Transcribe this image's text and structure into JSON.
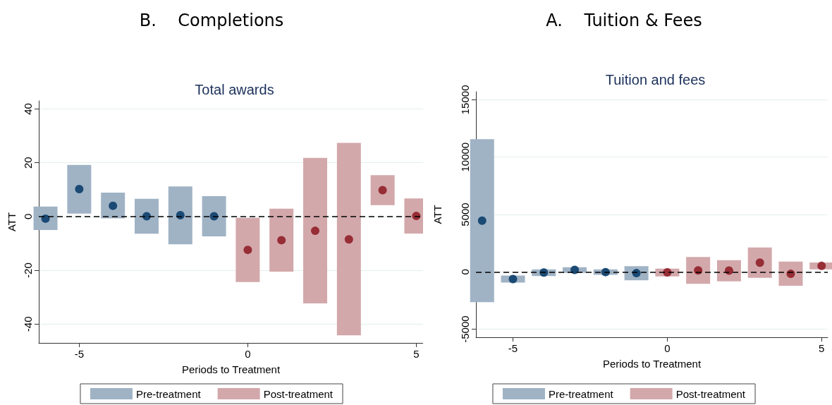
{
  "chart_data": [
    {
      "type": "bar",
      "title": "B.    Completions",
      "subtitle": "Total awards",
      "xlabel": "Periods to Treatment",
      "ylabel": "ATT",
      "xlim": [
        -6.2,
        5.2
      ],
      "xticks": [
        -5,
        0,
        5
      ],
      "ylim": [
        -47,
        43
      ],
      "yticks": [
        -40,
        -20,
        0,
        20,
        40
      ],
      "grid": "y",
      "legend": "bottom",
      "ref_lines": [
        {
          "axis": "y",
          "value": 0,
          "color": "#000000",
          "line_style": "dashed"
        }
      ],
      "series": [
        {
          "name": "Pre-treatment",
          "color": "#a0b3c5",
          "x": [
            -6,
            -5,
            -4,
            -3,
            -2,
            -1
          ],
          "base": [
            -5,
            1.1,
            -0.7,
            -6.4,
            -10.3,
            -7.4
          ],
          "values": [
            8.7,
            18.1,
            9.6,
            13,
            21.5,
            15
          ]
        },
        {
          "name": "Post-treatment",
          "color": "#d3a8ab",
          "x": [
            0,
            1,
            2,
            3,
            4,
            5
          ],
          "base": [
            -24.4,
            -20.5,
            -32.3,
            -44.2,
            4.2,
            -6.3
          ],
          "values": [
            23.9,
            23.4,
            54.1,
            71.6,
            11.2,
            13
          ]
        },
        {
          "type": "scatter",
          "marker": "circle",
          "color": "#1b4a74",
          "x": [
            -6,
            -5,
            -4,
            -3,
            -2,
            -1
          ],
          "values": [
            -0.8,
            10.2,
            4.0,
            0.1,
            0.5,
            0.1
          ]
        },
        {
          "type": "scatter",
          "marker": "circle",
          "color": "#972d35",
          "x": [
            0,
            1,
            2,
            3,
            4,
            5
          ],
          "values": [
            -12.4,
            -8.8,
            -5.3,
            -8.5,
            9.8,
            0.2
          ]
        }
      ]
    },
    {
      "type": "bar",
      "title": "A.    Tuition & Fees",
      "subtitle": "Tuition and fees",
      "xlabel": "Periods to Treatment",
      "ylabel": "ATT",
      "xlim": [
        -6.2,
        5.2
      ],
      "xticks": [
        -5,
        0,
        5
      ],
      "ylim": [
        -5700,
        15700
      ],
      "yticks": [
        -5000,
        0,
        5000,
        10000,
        15000
      ],
      "grid": "y",
      "legend": "bottom",
      "ref_lines": [
        {
          "axis": "y",
          "value": 0,
          "color": "#000000",
          "line_style": "dashed"
        }
      ],
      "series": [
        {
          "name": "Pre-treatment",
          "color": "#a0b3c5",
          "x": [
            -6,
            -5,
            -4,
            -3,
            -2,
            -1
          ],
          "base": [
            -2640,
            -930,
            -370,
            -90,
            -260,
            -740
          ],
          "values": [
            14200,
            610,
            590,
            500,
            480,
            1240
          ]
        },
        {
          "name": "Post-treatment",
          "color": "#d3a8ab",
          "x": [
            0,
            1,
            2,
            3,
            4,
            5
          ],
          "base": [
            -390,
            -1040,
            -820,
            -520,
            -1210,
            220
          ],
          "values": [
            670,
            2340,
            1840,
            2640,
            2100,
            600
          ]
        },
        {
          "type": "scatter",
          "marker": "circle",
          "color": "#1b4a74",
          "x": [
            -6,
            -5,
            -4,
            -3,
            -2,
            -1
          ],
          "values": [
            4460,
            -630,
            -60,
            170,
            -20,
            -110
          ]
        },
        {
          "type": "scatter",
          "marker": "circle",
          "color": "#972d35",
          "x": [
            0,
            1,
            2,
            3,
            4,
            5
          ],
          "values": [
            -40,
            130,
            110,
            800,
            -170,
            520
          ]
        }
      ]
    }
  ]
}
